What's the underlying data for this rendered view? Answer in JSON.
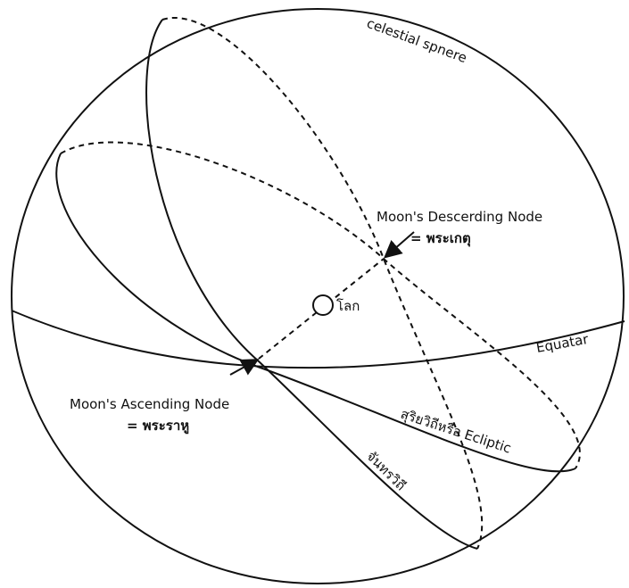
{
  "labels": {
    "sphere": "celestial spnere",
    "descending_node": "Moon's Descerding Node",
    "descending_node_thai": "= พระเกตุ",
    "earth": "โลก",
    "equator": "Equatar",
    "ascending_node": "Moon's Ascending Node",
    "ascending_node_thai": "= พระราหู",
    "ecliptic": "สุริยวิถีหรือ Ecliptic",
    "moon_orbit": "จันทรวิถี"
  }
}
